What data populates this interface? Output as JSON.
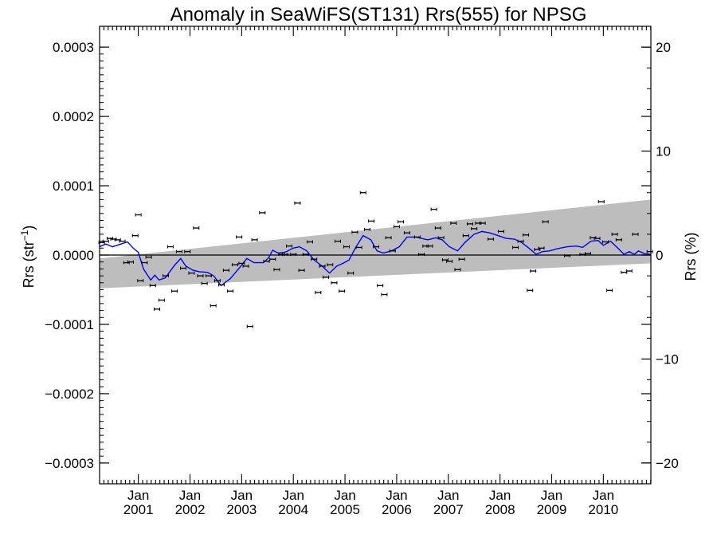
{
  "chart_data": {
    "type": "scatter",
    "title": "Anomaly in SeaWiFS(ST131) Rrs(555) for NPSG",
    "ylabel_left": {
      "base": "Rrs (str",
      "sup": "−1",
      "tail": ")"
    },
    "ylabel_right": "Rrs (%)",
    "xlim": [
      2000.25,
      2010.92
    ],
    "ylim": [
      -0.00033,
      0.00033
    ],
    "ylim_right": [
      -22,
      22
    ],
    "y_ticks": [
      {
        "value": 0.0003,
        "label": "0.0003"
      },
      {
        "value": 0.0002,
        "label": "0.0002"
      },
      {
        "value": 0.0001,
        "label": "0.0001"
      },
      {
        "value": 0.0,
        "label": "0.0000"
      },
      {
        "value": -0.0001,
        "label": "−0.0001"
      },
      {
        "value": -0.0002,
        "label": "−0.0002"
      },
      {
        "value": -0.0003,
        "label": "−0.0003"
      }
    ],
    "y_right_ticks": [
      {
        "value": 20,
        "label": "20"
      },
      {
        "value": 10,
        "label": "10"
      },
      {
        "value": 0,
        "label": "0"
      },
      {
        "value": -10,
        "label": "−10"
      },
      {
        "value": -20,
        "label": "−20"
      }
    ],
    "x_ticks": [
      {
        "value": 2001.0,
        "month": "Jan",
        "year": "2001"
      },
      {
        "value": 2002.0,
        "month": "Jan",
        "year": "2002"
      },
      {
        "value": 2003.0,
        "month": "Jan",
        "year": "2003"
      },
      {
        "value": 2004.0,
        "month": "Jan",
        "year": "2004"
      },
      {
        "value": 2005.0,
        "month": "Jan",
        "year": "2005"
      },
      {
        "value": 2006.0,
        "month": "Jan",
        "year": "2006"
      },
      {
        "value": 2007.0,
        "month": "Jan",
        "year": "2007"
      },
      {
        "value": 2008.0,
        "month": "Jan",
        "year": "2008"
      },
      {
        "value": 2009.0,
        "month": "Jan",
        "year": "2009"
      },
      {
        "value": 2010.0,
        "month": "Jan",
        "year": "2010"
      }
    ],
    "trend_band": {
      "x": [
        2000.25,
        2010.92
      ],
      "upper": [
        -5e-06,
        8e-05
      ],
      "lower": [
        -4.8e-05,
        -1.2e-05
      ]
    },
    "zero_line": 0,
    "points": [
      {
        "x": 2000.29,
        "y": 1.8e-05
      },
      {
        "x": 2000.37,
        "y": 2e-05
      },
      {
        "x": 2000.45,
        "y": 2.4e-05
      },
      {
        "x": 2000.52,
        "y": 2.3e-05
      },
      {
        "x": 2000.6,
        "y": 2.2e-05
      },
      {
        "x": 2000.69,
        "y": 2e-05
      },
      {
        "x": 2000.77,
        "y": -1.1e-05
      },
      {
        "x": 2000.85,
        "y": -1e-05
      },
      {
        "x": 2000.94,
        "y": 2.8e-05
      },
      {
        "x": 2001.0,
        "y": 5.8e-05
      },
      {
        "x": 2001.04,
        "y": -3.7e-05
      },
      {
        "x": 2001.12,
        "y": -1.1e-05
      },
      {
        "x": 2001.2,
        "y": -3e-06
      },
      {
        "x": 2001.28,
        "y": -4.4e-05
      },
      {
        "x": 2001.36,
        "y": -7.8e-05
      },
      {
        "x": 2001.45,
        "y": -6.5e-05
      },
      {
        "x": 2001.53,
        "y": -3e-05
      },
      {
        "x": 2001.62,
        "y": 1.2e-05
      },
      {
        "x": 2001.7,
        "y": -5.2e-05
      },
      {
        "x": 2001.79,
        "y": 5e-06
      },
      {
        "x": 2001.87,
        "y": -1.9e-05
      },
      {
        "x": 2001.95,
        "y": 5e-06
      },
      {
        "x": 2002.03,
        "y": -2.6e-05
      },
      {
        "x": 2002.12,
        "y": 3.9e-05
      },
      {
        "x": 2002.2,
        "y": -3e-05
      },
      {
        "x": 2002.28,
        "y": -4.1e-05
      },
      {
        "x": 2002.36,
        "y": -3e-05
      },
      {
        "x": 2002.45,
        "y": -7.3e-05
      },
      {
        "x": 2002.53,
        "y": -3.7e-05
      },
      {
        "x": 2002.61,
        "y": -4.3e-05
      },
      {
        "x": 2002.7,
        "y": -2.2e-05
      },
      {
        "x": 2002.78,
        "y": -5.2e-05
      },
      {
        "x": 2002.87,
        "y": -1.4e-05
      },
      {
        "x": 2002.95,
        "y": 2.6e-05
      },
      {
        "x": 2003.0,
        "y": -1.2e-05
      },
      {
        "x": 2003.08,
        "y": -1.6e-05
      },
      {
        "x": 2003.16,
        "y": -0.000103
      },
      {
        "x": 2003.25,
        "y": 2.2e-05
      },
      {
        "x": 2003.4,
        "y": 6.1e-05
      },
      {
        "x": 2003.48,
        "y": -9e-06
      },
      {
        "x": 2003.6,
        "y": -6e-06
      },
      {
        "x": 2003.68,
        "y": -2.1e-05
      },
      {
        "x": 2003.77,
        "y": 1e-06
      },
      {
        "x": 2003.84,
        "y": 1e-06
      },
      {
        "x": 2003.92,
        "y": 1.3e-05
      },
      {
        "x": 2004.0,
        "y": 1e-06
      },
      {
        "x": 2004.08,
        "y": 7.5e-05
      },
      {
        "x": 2004.16,
        "y": -2.2e-05
      },
      {
        "x": 2004.24,
        "y": 1e-06
      },
      {
        "x": 2004.32,
        "y": 1.9e-05
      },
      {
        "x": 2004.4,
        "y": -6e-06
      },
      {
        "x": 2004.48,
        "y": -5.4e-05
      },
      {
        "x": 2004.56,
        "y": -1.6e-05
      },
      {
        "x": 2004.63,
        "y": -3.2e-05
      },
      {
        "x": 2004.71,
        "y": -1.4e-05
      },
      {
        "x": 2004.79,
        "y": -4e-05
      },
      {
        "x": 2004.86,
        "y": 2e-05
      },
      {
        "x": 2004.94,
        "y": -5.2e-05
      },
      {
        "x": 2005.03,
        "y": 1.2e-05
      },
      {
        "x": 2005.11,
        "y": -2.6e-05
      },
      {
        "x": 2005.19,
        "y": 3.3e-05
      },
      {
        "x": 2005.27,
        "y": 1.1e-05
      },
      {
        "x": 2005.35,
        "y": 9e-05
      },
      {
        "x": 2005.43,
        "y": 3.7e-05
      },
      {
        "x": 2005.51,
        "y": 4.9e-05
      },
      {
        "x": 2005.6,
        "y": 1.2e-05
      },
      {
        "x": 2005.68,
        "y": -4.4e-05
      },
      {
        "x": 2005.76,
        "y": -5.7e-05
      },
      {
        "x": 2005.84,
        "y": 2.5e-05
      },
      {
        "x": 2005.92,
        "y": 6e-06
      },
      {
        "x": 2006.0,
        "y": 4.1e-05
      },
      {
        "x": 2006.08,
        "y": 4.8e-05
      },
      {
        "x": 2006.2,
        "y": 3.2e-05
      },
      {
        "x": 2006.4,
        "y": 2.6e-05
      },
      {
        "x": 2006.48,
        "y": 1e-06
      },
      {
        "x": 2006.56,
        "y": 1.3e-05
      },
      {
        "x": 2006.64,
        "y": 1.3e-05
      },
      {
        "x": 2006.72,
        "y": 6.6e-05
      },
      {
        "x": 2006.8,
        "y": 3.9e-05
      },
      {
        "x": 2006.86,
        "y": 2.5e-05
      },
      {
        "x": 2006.94,
        "y": -7e-06
      },
      {
        "x": 2007.02,
        "y": -9e-06
      },
      {
        "x": 2007.1,
        "y": 4.6e-05
      },
      {
        "x": 2007.18,
        "y": -2.1e-05
      },
      {
        "x": 2007.26,
        "y": -6e-06
      },
      {
        "x": 2007.34,
        "y": 2.8e-05
      },
      {
        "x": 2007.42,
        "y": 4.5e-05
      },
      {
        "x": 2007.5,
        "y": 3.8e-05
      },
      {
        "x": 2007.58,
        "y": 4.6e-05
      },
      {
        "x": 2007.66,
        "y": 4.6e-05
      },
      {
        "x": 2007.82,
        "y": 2.3e-05
      },
      {
        "x": 2008.02,
        "y": 3.4e-05
      },
      {
        "x": 2008.3,
        "y": 1.1e-05
      },
      {
        "x": 2008.4,
        "y": 2e-05
      },
      {
        "x": 2008.5,
        "y": 2.9e-05
      },
      {
        "x": 2008.58,
        "y": -5.1e-05
      },
      {
        "x": 2008.64,
        "y": -2.3e-05
      },
      {
        "x": 2008.72,
        "y": 8e-06
      },
      {
        "x": 2008.8,
        "y": 1e-05
      },
      {
        "x": 2008.88,
        "y": 4.8e-05
      },
      {
        "x": 2009.3,
        "y": -1e-06
      },
      {
        "x": 2009.6,
        "y": 1e-06
      },
      {
        "x": 2009.7,
        "y": 2e-06
      },
      {
        "x": 2009.8,
        "y": 2.5e-05
      },
      {
        "x": 2009.88,
        "y": 2.4e-05
      },
      {
        "x": 2009.96,
        "y": 7.7e-05
      },
      {
        "x": 2010.04,
        "y": 1.9e-05
      },
      {
        "x": 2010.12,
        "y": -5.1e-05
      },
      {
        "x": 2010.22,
        "y": 3e-05
      },
      {
        "x": 2010.3,
        "y": 2.2e-05
      },
      {
        "x": 2010.4,
        "y": -2.5e-05
      },
      {
        "x": 2010.5,
        "y": -2.3e-05
      },
      {
        "x": 2010.62,
        "y": 3e-05
      },
      {
        "x": 2010.9,
        "y": 5e-06
      }
    ],
    "smooth_line": [
      {
        "x": 2000.25,
        "y": 1.2e-05
      },
      {
        "x": 2000.37,
        "y": 1.6e-05
      },
      {
        "x": 2000.5,
        "y": 1.2e-05
      },
      {
        "x": 2000.67,
        "y": 1.6e-05
      },
      {
        "x": 2000.79,
        "y": 1.9e-05
      },
      {
        "x": 2000.9,
        "y": 1e-05
      },
      {
        "x": 2001.0,
        "y": 4e-06
      },
      {
        "x": 2001.1,
        "y": -2e-05
      },
      {
        "x": 2001.24,
        "y": -3.6e-05
      },
      {
        "x": 2001.32,
        "y": -2.9e-05
      },
      {
        "x": 2001.4,
        "y": -3.6e-05
      },
      {
        "x": 2001.52,
        "y": -3.3e-05
      },
      {
        "x": 2001.7,
        "y": -1.5e-05
      },
      {
        "x": 2001.82,
        "y": -5e-06
      },
      {
        "x": 2001.92,
        "y": -1.6e-05
      },
      {
        "x": 2002.06,
        "y": -2.2e-05
      },
      {
        "x": 2002.18,
        "y": -2.4e-05
      },
      {
        "x": 2002.34,
        "y": -2.5e-05
      },
      {
        "x": 2002.46,
        "y": -3e-05
      },
      {
        "x": 2002.6,
        "y": -4.4e-05
      },
      {
        "x": 2002.78,
        "y": -3.4e-05
      },
      {
        "x": 2002.96,
        "y": -1.8e-05
      },
      {
        "x": 2003.1,
        "y": -5e-06
      },
      {
        "x": 2003.24,
        "y": -1.1e-05
      },
      {
        "x": 2003.42,
        "y": -1.1e-05
      },
      {
        "x": 2003.52,
        "y": -4e-06
      },
      {
        "x": 2003.6,
        "y": 7e-06
      },
      {
        "x": 2003.7,
        "y": 3e-06
      },
      {
        "x": 2003.84,
        "y": 4e-06
      },
      {
        "x": 2004.0,
        "y": 1e-05
      },
      {
        "x": 2004.12,
        "y": 1.2e-05
      },
      {
        "x": 2004.26,
        "y": 6e-06
      },
      {
        "x": 2004.4,
        "y": -7e-06
      },
      {
        "x": 2004.54,
        "y": -1.5e-05
      },
      {
        "x": 2004.7,
        "y": -2.6e-05
      },
      {
        "x": 2004.84,
        "y": -1.6e-05
      },
      {
        "x": 2004.96,
        "y": -1.2e-05
      },
      {
        "x": 2005.08,
        "y": -7e-06
      },
      {
        "x": 2005.2,
        "y": 1e-05
      },
      {
        "x": 2005.35,
        "y": 2.8e-05
      },
      {
        "x": 2005.5,
        "y": 2.2e-05
      },
      {
        "x": 2005.62,
        "y": 6e-06
      },
      {
        "x": 2005.74,
        "y": 3e-06
      },
      {
        "x": 2005.9,
        "y": 6e-06
      },
      {
        "x": 2006.05,
        "y": 1.2e-05
      },
      {
        "x": 2006.2,
        "y": 2.6e-05
      },
      {
        "x": 2006.38,
        "y": 2.6e-05
      },
      {
        "x": 2006.6,
        "y": 2.2e-05
      },
      {
        "x": 2006.76,
        "y": 2.5e-05
      },
      {
        "x": 2006.88,
        "y": 2.2e-05
      },
      {
        "x": 2007.02,
        "y": 1.2e-05
      },
      {
        "x": 2007.18,
        "y": 6e-06
      },
      {
        "x": 2007.32,
        "y": 1.8e-05
      },
      {
        "x": 2007.5,
        "y": 3e-05
      },
      {
        "x": 2007.65,
        "y": 3.4e-05
      },
      {
        "x": 2007.8,
        "y": 3.2e-05
      },
      {
        "x": 2007.96,
        "y": 2.8e-05
      },
      {
        "x": 2008.12,
        "y": 2.4e-05
      },
      {
        "x": 2008.28,
        "y": 2.3e-05
      },
      {
        "x": 2008.42,
        "y": 1.8e-05
      },
      {
        "x": 2008.56,
        "y": 1e-05
      },
      {
        "x": 2008.7,
        "y": 1e-06
      },
      {
        "x": 2008.82,
        "y": 5e-06
      },
      {
        "x": 2008.96,
        "y": 6e-06
      },
      {
        "x": 2009.1,
        "y": 9e-06
      },
      {
        "x": 2009.3,
        "y": 1.2e-05
      },
      {
        "x": 2009.48,
        "y": 1.3e-05
      },
      {
        "x": 2009.6,
        "y": 1.1e-05
      },
      {
        "x": 2009.76,
        "y": 2e-05
      },
      {
        "x": 2009.9,
        "y": 2.1e-05
      },
      {
        "x": 2010.0,
        "y": 1.4e-05
      },
      {
        "x": 2010.14,
        "y": 2e-05
      },
      {
        "x": 2010.28,
        "y": 1e-05
      },
      {
        "x": 2010.4,
        "y": 1e-06
      },
      {
        "x": 2010.5,
        "y": 5e-06
      },
      {
        "x": 2010.6,
        "y": 1e-06
      },
      {
        "x": 2010.68,
        "y": 6e-06
      },
      {
        "x": 2010.8,
        "y": 2e-06
      },
      {
        "x": 2010.92,
        "y": 1e-06
      }
    ],
    "colors": {
      "band": "#bdbdbd",
      "smooth_line": "#0000ff",
      "points": "#000000",
      "zero_line": "#000000"
    },
    "grid": false,
    "legend": "none"
  }
}
